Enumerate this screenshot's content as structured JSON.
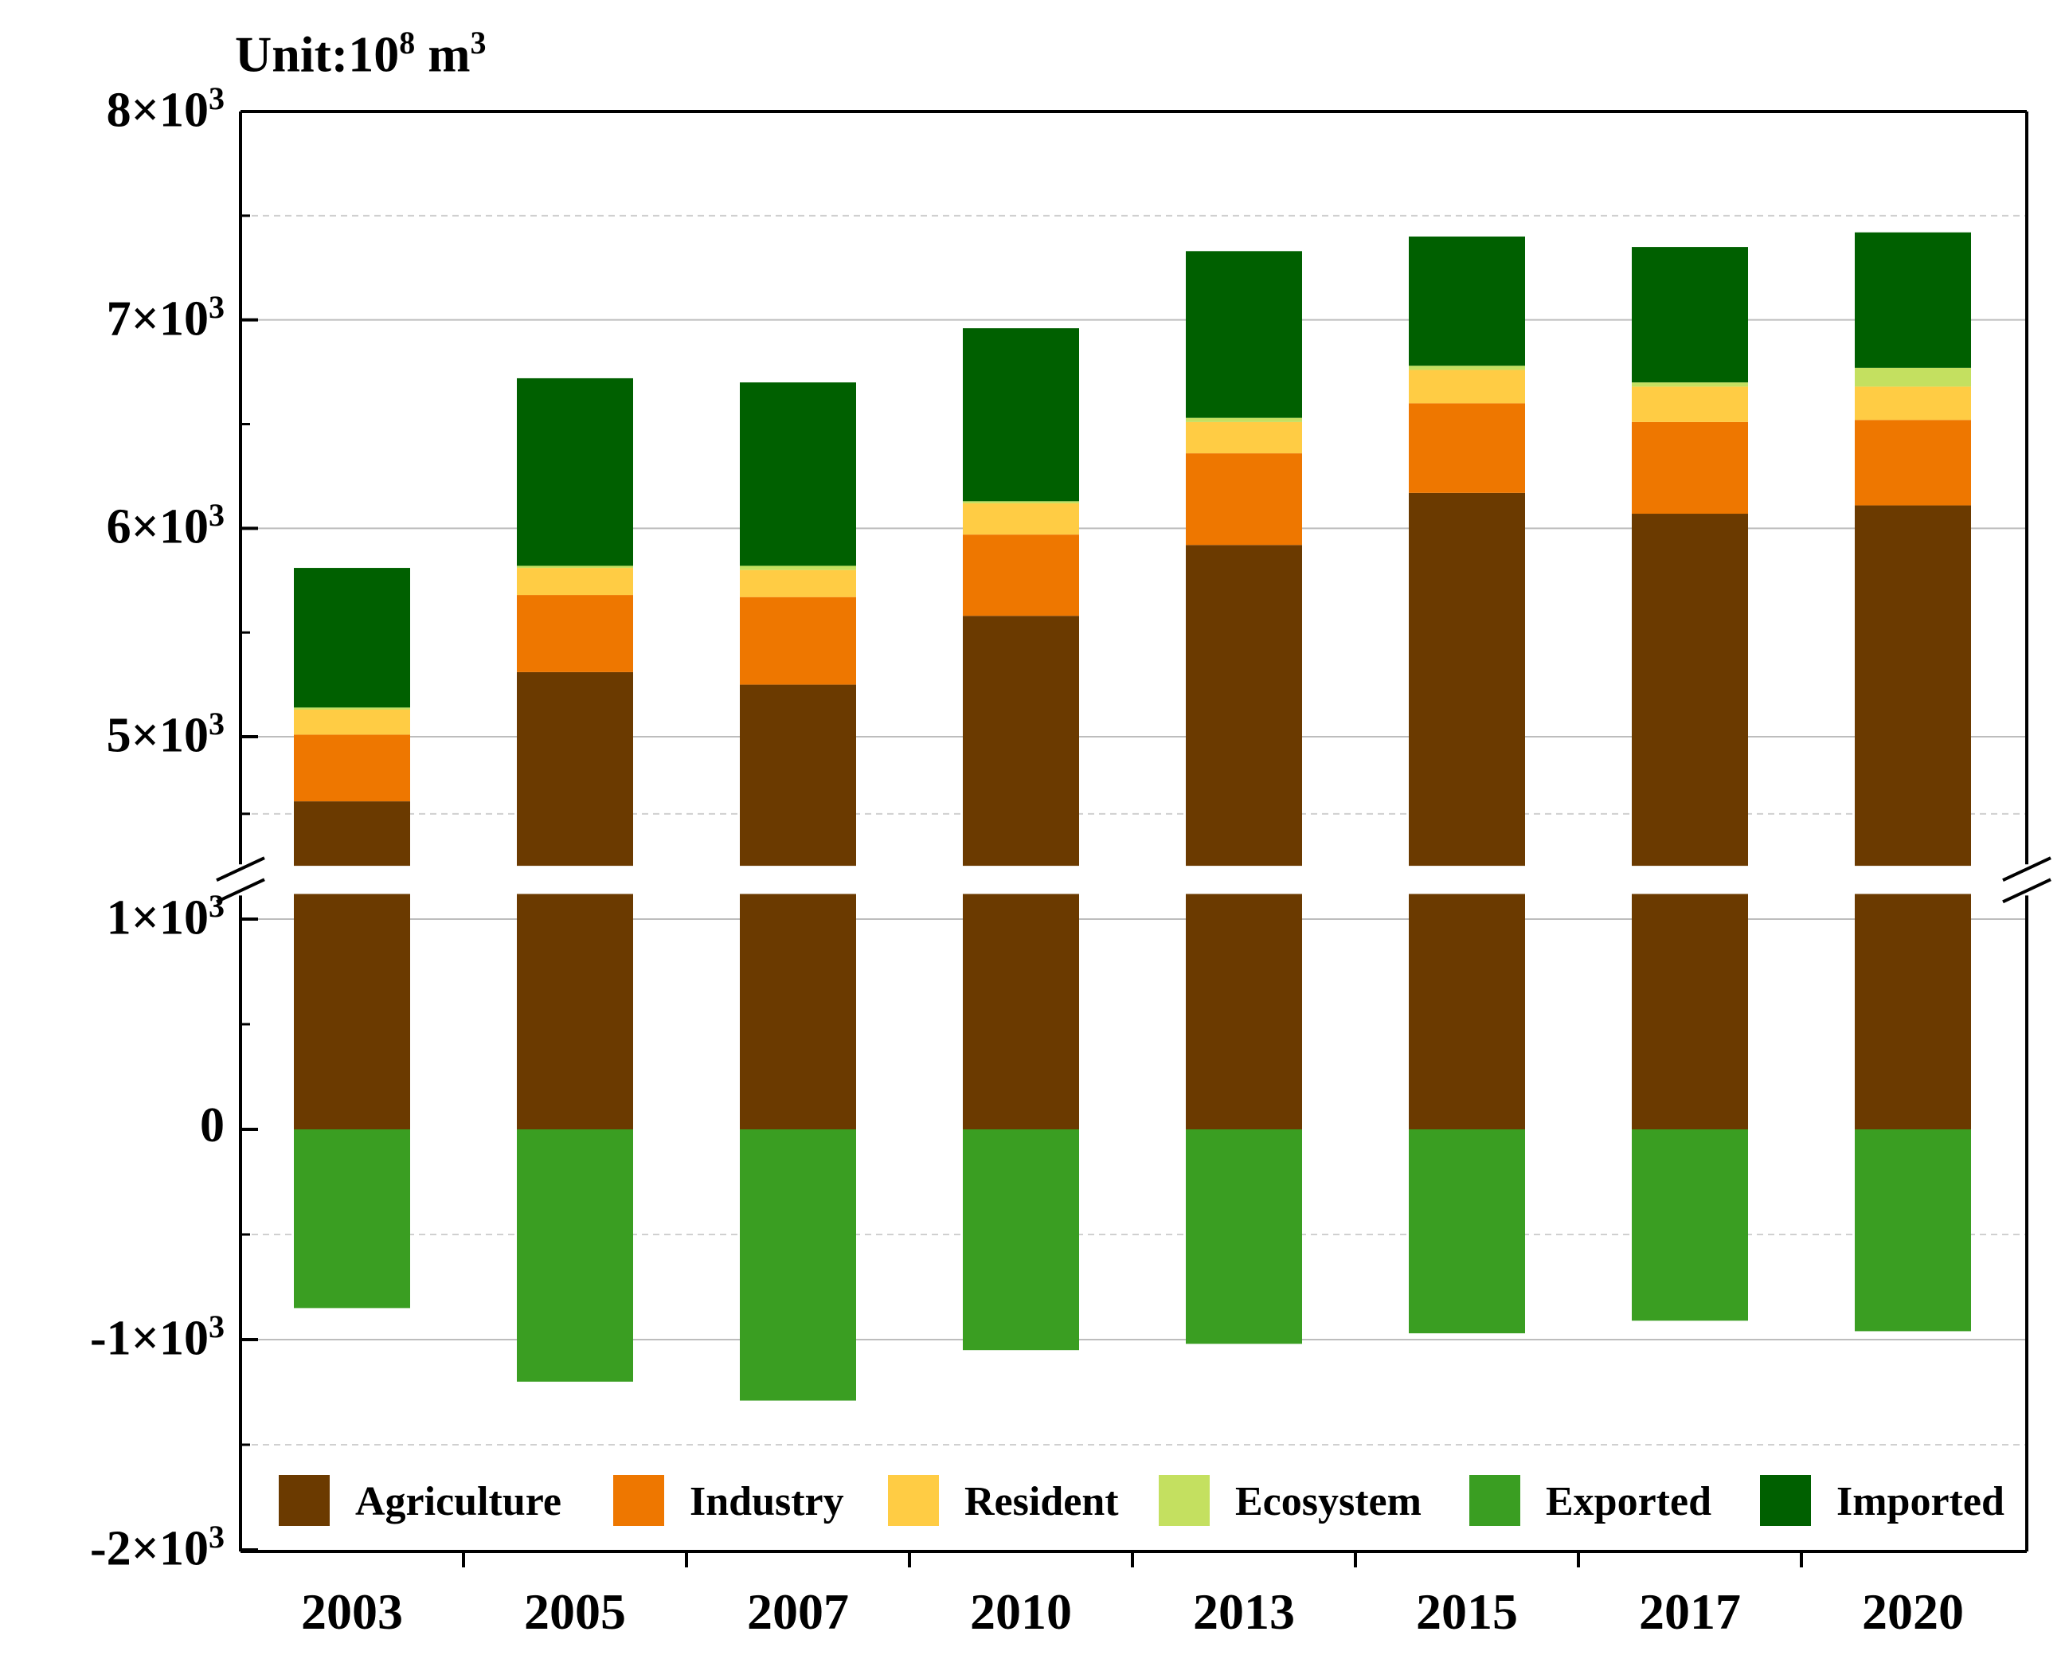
{
  "chart_data": {
    "type": "bar",
    "stacked": true,
    "unit_label": {
      "prefix": "Unit:10",
      "exp": "8",
      "suffix": " m",
      "suffix_exp": "3"
    },
    "categories": [
      "2003",
      "2005",
      "2007",
      "2010",
      "2013",
      "2015",
      "2017",
      "2020"
    ],
    "series": [
      {
        "name": "Agriculture",
        "color": "#6B3A00",
        "values": [
          4690,
          5310,
          5250,
          5580,
          5920,
          6170,
          6070,
          6110
        ]
      },
      {
        "name": "Industry",
        "color": "#EE7700",
        "values": [
          320,
          370,
          420,
          390,
          440,
          430,
          440,
          410
        ]
      },
      {
        "name": "Resident",
        "color": "#FFCC44",
        "values": [
          120,
          130,
          130,
          150,
          150,
          160,
          170,
          160
        ]
      },
      {
        "name": "Ecosystem",
        "color": "#C4E060",
        "values": [
          10,
          10,
          20,
          10,
          20,
          20,
          20,
          90
        ]
      },
      {
        "name": "Exported",
        "color": "#3A9E22",
        "values": [
          -850,
          -1200,
          -1290,
          -1050,
          -1020,
          -970,
          -910,
          -960
        ]
      },
      {
        "name": "Imported",
        "color": "#006000",
        "values": [
          670,
          900,
          880,
          830,
          800,
          620,
          650,
          650
        ]
      }
    ],
    "axis_break": {
      "lower": 1120,
      "upper": 4380
    },
    "y_ticks_lower": [
      {
        "value": 1000,
        "base": "1×10",
        "exp": "3"
      },
      {
        "value": 0,
        "base": "0",
        "exp": ""
      },
      {
        "value": -1000,
        "base": "-1×10",
        "exp": "3"
      },
      {
        "value": -2000,
        "base": "-2×10",
        "exp": "3"
      }
    ],
    "y_ticks_upper": [
      {
        "value": 5000,
        "base": "5×10",
        "exp": "3"
      },
      {
        "value": 6000,
        "base": "6×10",
        "exp": "3"
      },
      {
        "value": 7000,
        "base": "7×10",
        "exp": "3"
      },
      {
        "value": 8000,
        "base": "8×10",
        "exp": "3"
      }
    ],
    "ylim_lower": [
      -2000,
      1120
    ],
    "ylim_upper": [
      4380,
      8000
    ],
    "legend_position": "bottom-inside"
  }
}
